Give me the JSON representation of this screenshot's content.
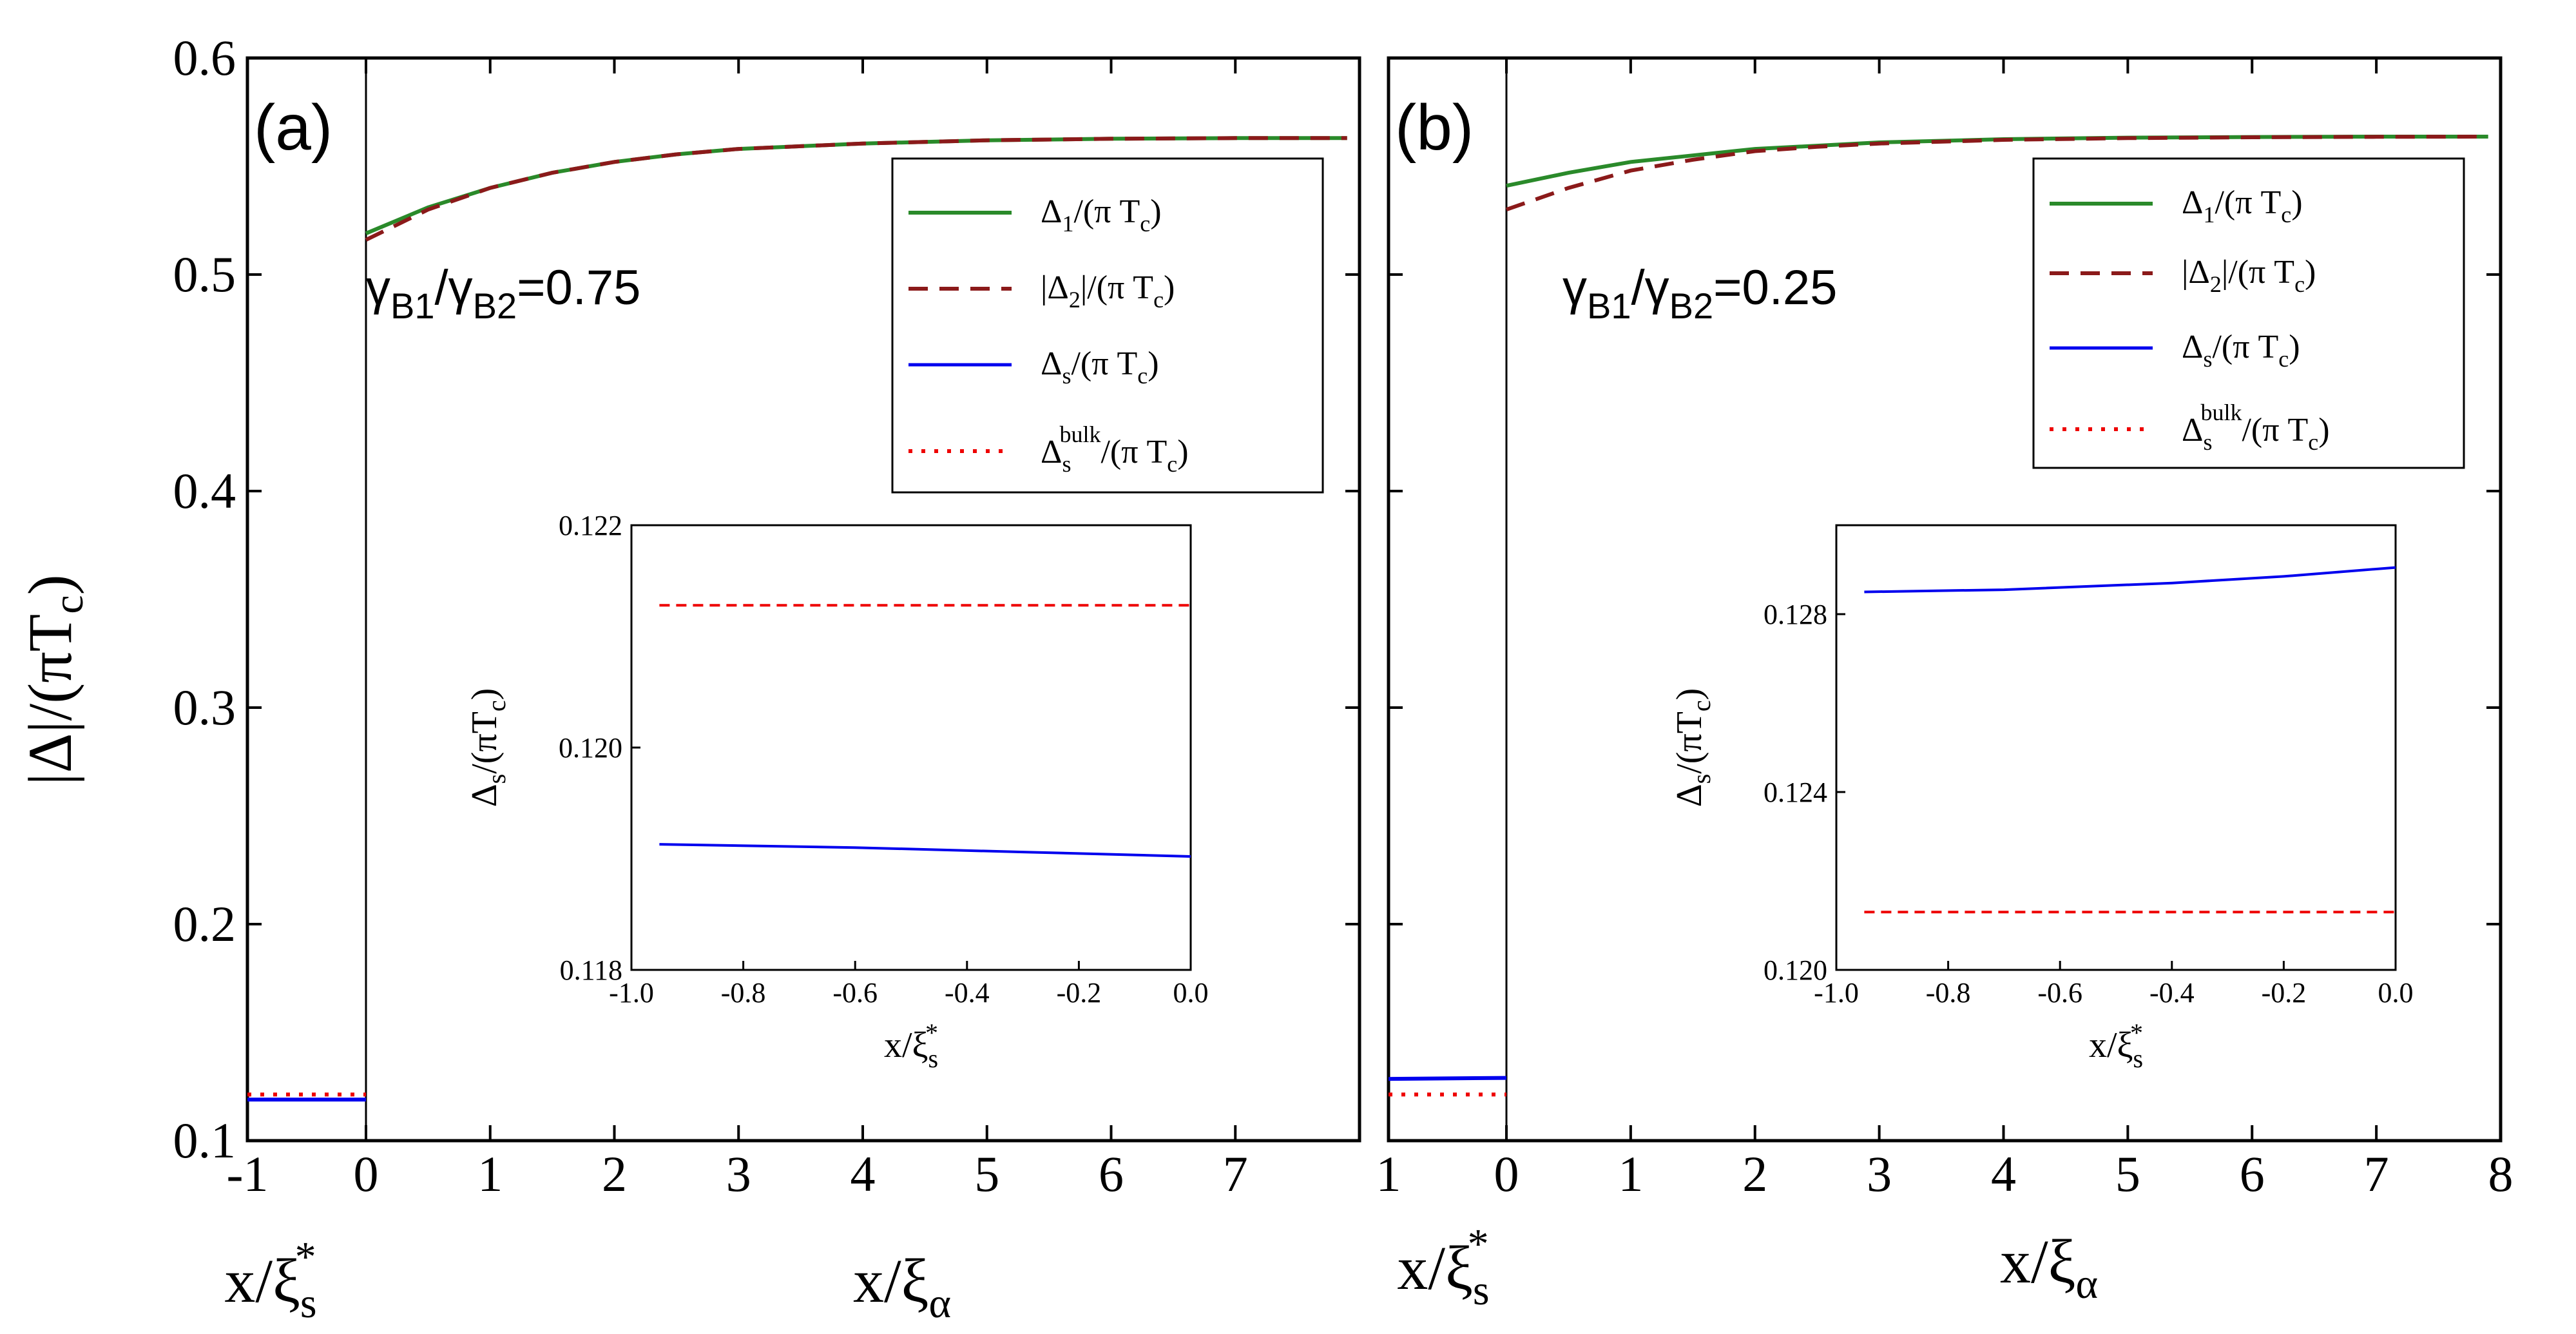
{
  "figure": {
    "ylabel": "|Δ|/(πT_c)",
    "xlabel_left": "x/ξ_s*",
    "xlabel_right": "x/ξ_α",
    "y_ticks": [
      "0.1",
      "0.2",
      "0.3",
      "0.4",
      "0.5",
      "0.6"
    ],
    "x_ticks_a": [
      "-1",
      "0",
      "1",
      "2",
      "3",
      "4",
      "5",
      "6",
      "7"
    ],
    "x_ticks_b": [
      "1",
      "0",
      "1",
      "2",
      "3",
      "4",
      "5",
      "6",
      "7",
      "8"
    ]
  },
  "chart_data": [
    {
      "panel": "(a)",
      "type": "line",
      "ratio_label": "γB1/γB2=0.75",
      "ylabel": "|Δ|/(πTc)",
      "ylim": [
        0.1,
        0.6
      ],
      "left_region": {
        "xlabel": "x/ξs*",
        "xlim": [
          -1,
          0
        ]
      },
      "right_region": {
        "xlabel": "x/ξα",
        "xlim": [
          0,
          8
        ]
      },
      "legend": [
        "Δ1/(π Tc)",
        "|Δ2|/(π Tc)",
        "Δs/(π Tc)",
        "Δs^bulk/(π Tc)"
      ],
      "series": [
        {
          "name": "Δ1/(π Tc)",
          "color": "#2a8a2a",
          "style": "solid",
          "x": [
            0,
            0.5,
            1,
            1.5,
            2,
            2.5,
            3,
            4,
            5,
            6,
            7,
            7.9
          ],
          "y": [
            0.519,
            0.531,
            0.54,
            0.547,
            0.552,
            0.5555,
            0.558,
            0.5605,
            0.562,
            0.5627,
            0.563,
            0.563
          ]
        },
        {
          "name": "|Δ2|/(π Tc)",
          "color": "#8b1a1a",
          "style": "dashed",
          "x": [
            0,
            0.5,
            1,
            1.5,
            2,
            2.5,
            3,
            4,
            5,
            6,
            7,
            7.9
          ],
          "y": [
            0.516,
            0.53,
            0.54,
            0.547,
            0.552,
            0.5555,
            0.558,
            0.5605,
            0.562,
            0.5627,
            0.563,
            0.563
          ]
        },
        {
          "name": "Δs/(π Tc)",
          "color": "#0000ee",
          "style": "solid",
          "region": "left",
          "x": [
            -1,
            0
          ],
          "y": [
            0.119,
            0.119
          ]
        },
        {
          "name": "Δs^bulk/(π Tc)",
          "color": "#ee0000",
          "style": "dotted",
          "region": "left",
          "x": [
            -1,
            0
          ],
          "y": [
            0.1213,
            0.1213
          ]
        }
      ],
      "inset": {
        "xlabel": "x/ξs*",
        "ylabel": "Δs/(πTc)",
        "xlim": [
          -1.0,
          0.0
        ],
        "ylim": [
          0.118,
          0.122
        ],
        "x_ticks": [
          "-1.0",
          "-0.8",
          "-0.6",
          "-0.4",
          "-0.2",
          "0.0"
        ],
        "y_ticks": [
          "0.118",
          "0.120",
          "0.122"
        ],
        "series": [
          {
            "name": "Δs",
            "color": "#0000ee",
            "style": "solid",
            "x": [
              -0.95,
              -0.6,
              -0.3,
              0.0
            ],
            "y": [
              0.11913,
              0.1191,
              0.11906,
              0.11902
            ]
          },
          {
            "name": "Δs bulk",
            "color": "#ee0000",
            "style": "dashed",
            "x": [
              -0.95,
              0.0
            ],
            "y": [
              0.12128,
              0.12128
            ]
          }
        ]
      }
    },
    {
      "panel": "(b)",
      "type": "line",
      "ratio_label": "γB1/γB2=0.25",
      "ylabel": "|Δ|/(πTc)",
      "ylim": [
        0.1,
        0.6
      ],
      "left_region": {
        "xlabel": "x/ξs*",
        "xlim": [
          -1,
          0
        ]
      },
      "right_region": {
        "xlabel": "x/ξα",
        "xlim": [
          0,
          8
        ]
      },
      "legend": [
        "Δ1/(π Tc)",
        "|Δ2|/(π Tc)",
        "Δs/(π Tc)",
        "Δs^bulk/(π Tc)"
      ],
      "series": [
        {
          "name": "Δ1/(π Tc)",
          "color": "#2a8a2a",
          "style": "solid",
          "x": [
            0,
            0.5,
            1,
            1.5,
            2,
            2.5,
            3,
            4,
            5,
            6,
            7,
            7.9
          ],
          "y": [
            0.541,
            0.547,
            0.552,
            0.555,
            0.558,
            0.5595,
            0.561,
            0.5625,
            0.5632,
            0.5635,
            0.5637,
            0.5637
          ]
        },
        {
          "name": "|Δ2|/(π Tc)",
          "color": "#8b1a1a",
          "style": "dashed",
          "x": [
            0,
            0.5,
            1,
            1.5,
            2,
            2.5,
            3,
            4,
            5,
            6,
            7,
            7.9
          ],
          "y": [
            0.53,
            0.54,
            0.548,
            0.553,
            0.557,
            0.559,
            0.5605,
            0.5622,
            0.563,
            0.5634,
            0.5636,
            0.5637
          ]
        },
        {
          "name": "Δs/(π Tc)",
          "color": "#0000ee",
          "style": "solid",
          "region": "left",
          "x": [
            -1,
            0
          ],
          "y": [
            0.1285,
            0.129
          ]
        },
        {
          "name": "Δs^bulk/(π Tc)",
          "color": "#ee0000",
          "style": "dotted",
          "region": "left",
          "x": [
            -1,
            0
          ],
          "y": [
            0.1213,
            0.1213
          ]
        }
      ],
      "inset": {
        "xlabel": "x/ξs*",
        "ylabel": "Δs/(πTc)",
        "xlim": [
          -1.0,
          0.0
        ],
        "ylim": [
          0.12,
          0.13
        ],
        "x_ticks": [
          "-1.0",
          "-0.8",
          "-0.6",
          "-0.4",
          "-0.2",
          "0.0"
        ],
        "y_ticks": [
          "0.120",
          "0.124",
          "0.128"
        ],
        "series": [
          {
            "name": "Δs",
            "color": "#0000ee",
            "style": "solid",
            "x": [
              -0.95,
              -0.7,
              -0.4,
              -0.2,
              0.0
            ],
            "y": [
              0.1285,
              0.12855,
              0.1287,
              0.12885,
              0.12905
            ]
          },
          {
            "name": "Δs bulk",
            "color": "#ee0000",
            "style": "dashed",
            "x": [
              -0.95,
              0.0
            ],
            "y": [
              0.1213,
              0.1213
            ]
          }
        ]
      }
    }
  ]
}
